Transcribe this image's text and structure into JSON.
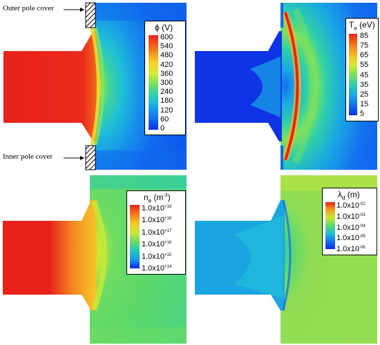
{
  "annotations": {
    "outer_pole_cover": "Outer pole cover",
    "inner_pole_cover": "Inner pole cover"
  },
  "panels": [
    {
      "id": "potential",
      "legend_title_symbol": "ϕ",
      "legend_title_sub": "",
      "legend_title_unit": " (V)",
      "ticks": [
        "600",
        "540",
        "480",
        "420",
        "360",
        "300",
        "240",
        "180",
        "120",
        "60",
        "0"
      ],
      "colorbar": [
        "#e8221a",
        "#f05a1c",
        "#f49b21",
        "#f5d62a",
        "#d5ec36",
        "#86e35a",
        "#3fd39a",
        "#20bfd8",
        "#1794ea",
        "#1168ee",
        "#0b2ce8"
      ]
    },
    {
      "id": "electron_temperature",
      "legend_title_symbol": "T",
      "legend_title_sub": "e",
      "legend_title_unit": " (eV)",
      "ticks": [
        "85",
        "75",
        "65",
        "55",
        "45",
        "35",
        "25",
        "15",
        "5"
      ],
      "colorbar": [
        "#e8221a",
        "#f3751e",
        "#f5b526",
        "#d9ea33",
        "#7fe15c",
        "#2fd0a8",
        "#1aa7e4",
        "#1470ee",
        "#0b2ce8"
      ]
    },
    {
      "id": "electron_density",
      "legend_title_symbol": "n",
      "legend_title_sub": "e",
      "legend_title_unit": " (m",
      "legend_title_sup": "-3",
      "legend_title_close": ")",
      "ticks": [
        {
          "base": "1.0x10",
          "exp": "+19"
        },
        {
          "base": "1.0x10",
          "exp": "+18"
        },
        {
          "base": "1.0x10",
          "exp": "+17"
        },
        {
          "base": "1.0x10",
          "exp": "+16"
        },
        {
          "base": "1.0x10",
          "exp": "+15"
        },
        {
          "base": "1.0x10",
          "exp": "+14"
        }
      ],
      "colorbar": [
        "#e8221a",
        "#f3761e",
        "#f5c628",
        "#cbe836",
        "#6fdc62",
        "#27c9b4",
        "#169ae8",
        "#0b2ce8"
      ]
    },
    {
      "id": "debye_length",
      "legend_title_symbol": "λ",
      "legend_title_sub": "d",
      "legend_title_unit": " (m)",
      "ticks": [
        {
          "base": "1.0x10",
          "exp": "-02"
        },
        {
          "base": "1.0x10",
          "exp": "-03"
        },
        {
          "base": "1.0x10",
          "exp": "-04"
        },
        {
          "base": "1.0x10",
          "exp": "-05"
        },
        {
          "base": "1.0x10",
          "exp": "-06"
        }
      ],
      "colorbar": [
        "#e8221a",
        "#f4a323",
        "#c7e737",
        "#5bd86e",
        "#21bdd8",
        "#1470ee",
        "#0b2ce8"
      ]
    }
  ]
}
